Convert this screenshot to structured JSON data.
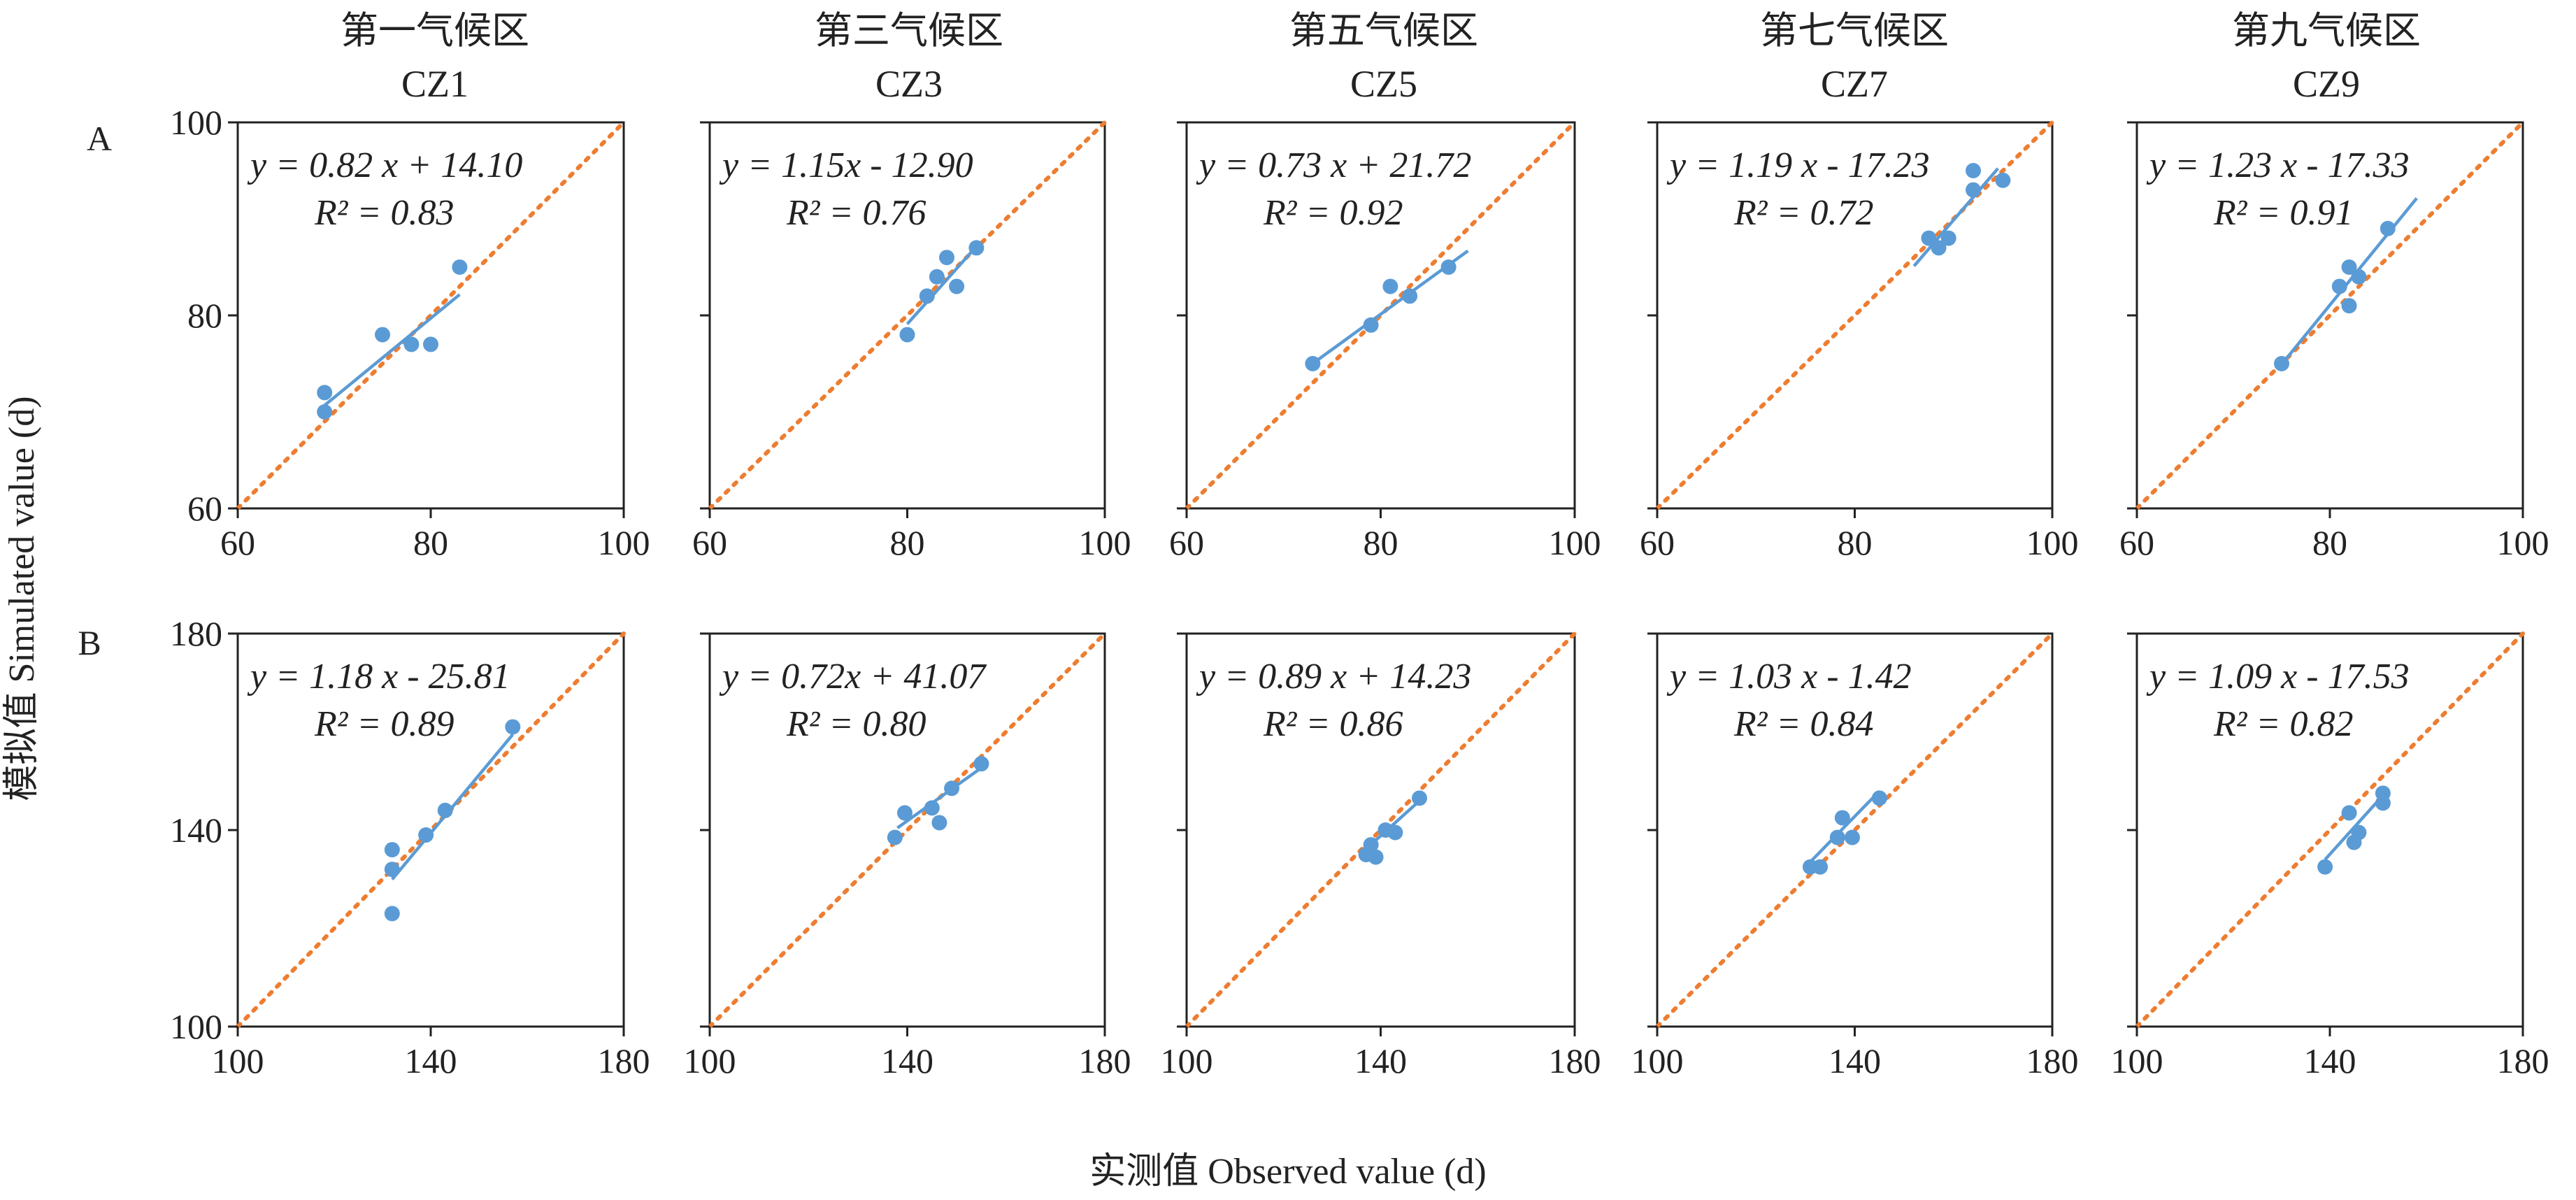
{
  "figure": {
    "row_labels": [
      "A",
      "B"
    ],
    "y_axis_title": "模拟值 Simulated value (d)",
    "x_axis_title": "实测值 Observed value (d)",
    "columns": [
      {
        "zone_cn": "第一气候区",
        "zone_code": "CZ1"
      },
      {
        "zone_cn": "第三气候区",
        "zone_code": "CZ3"
      },
      {
        "zone_cn": "第五气候区",
        "zone_code": "CZ5"
      },
      {
        "zone_cn": "第七气候区",
        "zone_code": "CZ7"
      },
      {
        "zone_cn": "第九气候区",
        "zone_code": "CZ9"
      }
    ]
  },
  "chart_data": [
    {
      "type": "scatter",
      "row": "A",
      "zone": "CZ1",
      "xlim": [
        60,
        100
      ],
      "ylim": [
        60,
        100
      ],
      "xticks": [
        "60",
        "80",
        "100"
      ],
      "yticks": [
        "60",
        "80",
        "100"
      ],
      "points": [
        [
          69,
          72
        ],
        [
          69,
          70
        ],
        [
          75,
          78
        ],
        [
          78,
          77
        ],
        [
          80,
          77
        ],
        [
          83,
          85
        ]
      ],
      "fit": {
        "slope": 0.82,
        "intercept": 14.1,
        "x_range": [
          69,
          83
        ]
      },
      "equation": "y = 0.82 x + 14.10",
      "r2": "R² = 0.83"
    },
    {
      "type": "scatter",
      "row": "A",
      "zone": "CZ3",
      "xlim": [
        60,
        100
      ],
      "ylim": [
        60,
        100
      ],
      "xticks": [
        "60",
        "80",
        "100"
      ],
      "yticks": [],
      "points": [
        [
          80,
          78
        ],
        [
          82,
          82
        ],
        [
          83,
          84
        ],
        [
          84,
          86
        ],
        [
          85,
          83
        ],
        [
          87,
          87
        ]
      ],
      "fit": {
        "slope": 1.15,
        "intercept": -12.9,
        "x_range": [
          80,
          87
        ]
      },
      "equation": "y = 1.15x - 12.90",
      "r2": "R² = 0.76"
    },
    {
      "type": "scatter",
      "row": "A",
      "zone": "CZ5",
      "xlim": [
        60,
        100
      ],
      "ylim": [
        60,
        100
      ],
      "xticks": [
        "60",
        "80",
        "100"
      ],
      "yticks": [],
      "points": [
        [
          73,
          75
        ],
        [
          79,
          79
        ],
        [
          81,
          83
        ],
        [
          83,
          82
        ],
        [
          87,
          85
        ]
      ],
      "fit": {
        "slope": 0.73,
        "intercept": 21.72,
        "x_range": [
          73,
          89
        ]
      },
      "equation": "y = 0.73 x + 21.72",
      "r2": "R² = 0.92"
    },
    {
      "type": "scatter",
      "row": "A",
      "zone": "CZ7",
      "xlim": [
        60,
        100
      ],
      "ylim": [
        60,
        100
      ],
      "xticks": [
        "60",
        "80",
        "100"
      ],
      "yticks": [],
      "points": [
        [
          87.5,
          88
        ],
        [
          88.5,
          87
        ],
        [
          89.5,
          88
        ],
        [
          92,
          93
        ],
        [
          92,
          95
        ],
        [
          95,
          94
        ]
      ],
      "fit": {
        "slope": 1.19,
        "intercept": -17.23,
        "x_range": [
          86,
          94.5
        ]
      },
      "equation": "y = 1.19 x - 17.23",
      "r2": "R² = 0.72"
    },
    {
      "type": "scatter",
      "row": "A",
      "zone": "CZ9",
      "xlim": [
        60,
        100
      ],
      "ylim": [
        60,
        100
      ],
      "xticks": [
        "60",
        "80",
        "100"
      ],
      "yticks": [],
      "points": [
        [
          75,
          75
        ],
        [
          81,
          83
        ],
        [
          82,
          85
        ],
        [
          82,
          81
        ],
        [
          83,
          84
        ],
        [
          86,
          89
        ]
      ],
      "fit": {
        "slope": 1.23,
        "intercept": -17.33,
        "x_range": [
          75,
          89
        ]
      },
      "equation": "y = 1.23 x - 17.33",
      "r2": "R² = 0.91"
    },
    {
      "type": "scatter",
      "row": "B",
      "zone": "CZ1",
      "xlim": [
        100,
        180
      ],
      "ylim": [
        100,
        180
      ],
      "xticks": [
        "100",
        "140",
        "180"
      ],
      "yticks": [
        "100",
        "140",
        "180"
      ],
      "points": [
        [
          132,
          123
        ],
        [
          132,
          132
        ],
        [
          132,
          136
        ],
        [
          139,
          139
        ],
        [
          143,
          144
        ],
        [
          157,
          161
        ]
      ],
      "fit": {
        "slope": 1.18,
        "intercept": -25.81,
        "x_range": [
          132,
          157
        ]
      },
      "equation": "y = 1.18 x - 25.81",
      "r2": "R² = 0.89"
    },
    {
      "type": "scatter",
      "row": "B",
      "zone": "CZ3",
      "xlim": [
        100,
        180
      ],
      "ylim": [
        100,
        180
      ],
      "xticks": [
        "100",
        "140",
        "180"
      ],
      "yticks": [],
      "points": [
        [
          137.5,
          138.5
        ],
        [
          139.5,
          143.5
        ],
        [
          145,
          144.5
        ],
        [
          146.5,
          141.5
        ],
        [
          149,
          148.5
        ],
        [
          155,
          153.5
        ]
      ],
      "fit": {
        "slope": 0.72,
        "intercept": 41.07,
        "x_range": [
          138,
          155
        ]
      },
      "equation": "y = 0.72x + 41.07",
      "r2": "R² = 0.80"
    },
    {
      "type": "scatter",
      "row": "B",
      "zone": "CZ5",
      "xlim": [
        100,
        180
      ],
      "ylim": [
        100,
        180
      ],
      "xticks": [
        "100",
        "140",
        "180"
      ],
      "yticks": [],
      "points": [
        [
          137,
          135
        ],
        [
          138,
          137
        ],
        [
          139,
          134.5
        ],
        [
          141,
          140
        ],
        [
          143,
          139.5
        ],
        [
          148,
          146.5
        ]
      ],
      "fit": {
        "slope": 0.89,
        "intercept": 14.23,
        "x_range": [
          137,
          148
        ]
      },
      "equation": "y = 0.89 x + 14.23",
      "r2": "R² = 0.86"
    },
    {
      "type": "scatter",
      "row": "B",
      "zone": "CZ7",
      "xlim": [
        100,
        180
      ],
      "ylim": [
        100,
        180
      ],
      "xticks": [
        "100",
        "140",
        "180"
      ],
      "yticks": [],
      "points": [
        [
          131,
          132.5
        ],
        [
          133,
          132.5
        ],
        [
          136.5,
          138.5
        ],
        [
          137.5,
          142.5
        ],
        [
          139.5,
          138.5
        ],
        [
          145,
          146.5
        ]
      ],
      "fit": {
        "slope": 1.03,
        "intercept": -1.42,
        "x_range": [
          131,
          145
        ]
      },
      "equation": "y = 1.03 x - 1.42",
      "r2": "R² = 0.84"
    },
    {
      "type": "scatter",
      "row": "B",
      "zone": "CZ9",
      "xlim": [
        100,
        180
      ],
      "ylim": [
        100,
        180
      ],
      "xticks": [
        "100",
        "140",
        "180"
      ],
      "yticks": [],
      "points": [
        [
          139,
          132.5
        ],
        [
          144,
          143.5
        ],
        [
          145,
          137.5
        ],
        [
          146,
          139.5
        ],
        [
          151,
          145.5
        ],
        [
          151,
          147.5
        ]
      ],
      "fit": {
        "slope": 1.09,
        "intercept": -17.53,
        "x_range": [
          139,
          152
        ]
      },
      "equation": "y = 1.09 x - 17.53",
      "r2": "R² = 0.82"
    }
  ]
}
